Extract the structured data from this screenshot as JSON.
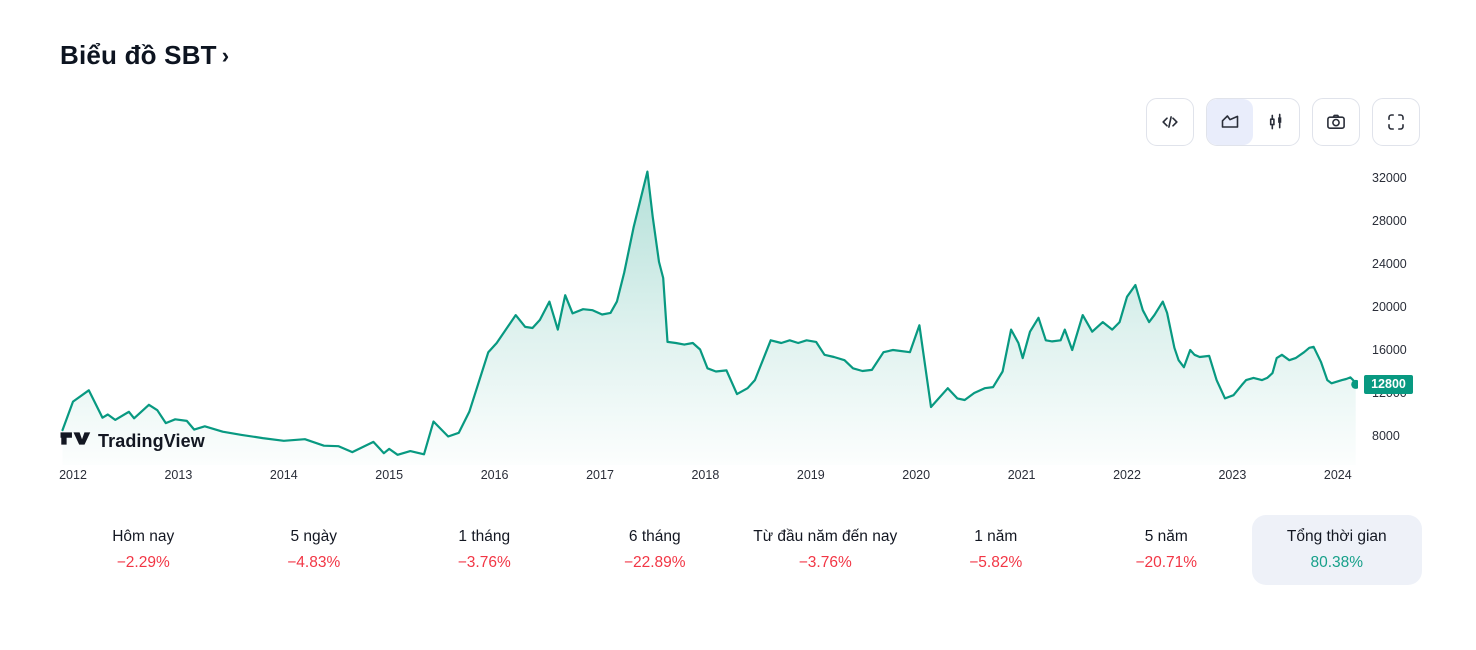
{
  "page": {
    "title": "Biểu đồ SBT",
    "chevron": "›"
  },
  "theme": {
    "accent": "#089981",
    "negative": "#f23645",
    "text-dark": "#131722",
    "pill-bg": "#eef1f8"
  },
  "toolbar": {
    "buttons": [
      {
        "name": "code",
        "icon": "code-icon"
      },
      {
        "name": "area-chart",
        "icon": "area-chart-icon",
        "active": true
      },
      {
        "name": "candlestick",
        "icon": "candlestick-icon",
        "active": false
      },
      {
        "name": "snapshot",
        "icon": "camera-icon"
      },
      {
        "name": "fullscreen",
        "icon": "fullscreen-icon"
      }
    ]
  },
  "watermark": {
    "text": "TradingView"
  },
  "price_scale": {
    "current_price_label": "12800"
  },
  "chart_data": {
    "type": "area",
    "symbol": "SBT",
    "title": "Biểu đồ SBT",
    "line_color": "#089981",
    "fill_top": "rgba(8,153,129,0.30)",
    "fill_mid": "rgba(8,153,129,0.13)",
    "fill_bottom": "rgba(8,153,129,0.01)",
    "x_ticks": [
      2012,
      2013,
      2014,
      2015,
      2016,
      2017,
      2018,
      2019,
      2020,
      2021,
      2022,
      2023,
      2024
    ],
    "y_ticks": [
      8000,
      12000,
      16000,
      20000,
      24000,
      28000,
      32000
    ],
    "x_range": [
      2011.9,
      2024.33
    ],
    "y_range": [
      5300,
      34100
    ],
    "grid": false,
    "last_price": 12800,
    "series": [
      {
        "name": "SBT",
        "points": [
          [
            2011.9,
            8550
          ],
          [
            2012.0,
            11200
          ],
          [
            2012.15,
            12250
          ],
          [
            2012.28,
            9700
          ],
          [
            2012.33,
            10000
          ],
          [
            2012.4,
            9500
          ],
          [
            2012.53,
            10250
          ],
          [
            2012.58,
            9650
          ],
          [
            2012.72,
            10900
          ],
          [
            2012.8,
            10400
          ],
          [
            2012.88,
            9200
          ],
          [
            2012.97,
            9550
          ],
          [
            2013.08,
            9400
          ],
          [
            2013.15,
            8600
          ],
          [
            2013.25,
            8900
          ],
          [
            2013.42,
            8400
          ],
          [
            2013.6,
            8100
          ],
          [
            2013.8,
            7800
          ],
          [
            2014.0,
            7550
          ],
          [
            2014.2,
            7700
          ],
          [
            2014.38,
            7100
          ],
          [
            2014.52,
            7050
          ],
          [
            2014.65,
            6500
          ],
          [
            2014.85,
            7450
          ],
          [
            2014.95,
            6400
          ],
          [
            2015.0,
            6800
          ],
          [
            2015.08,
            6250
          ],
          [
            2015.2,
            6600
          ],
          [
            2015.33,
            6300
          ],
          [
            2015.42,
            9350
          ],
          [
            2015.56,
            7950
          ],
          [
            2015.66,
            8300
          ],
          [
            2015.76,
            10250
          ],
          [
            2015.94,
            15800
          ],
          [
            2016.02,
            16650
          ],
          [
            2016.2,
            19250
          ],
          [
            2016.29,
            18150
          ],
          [
            2016.36,
            18050
          ],
          [
            2016.43,
            18800
          ],
          [
            2016.52,
            20500
          ],
          [
            2016.6,
            17900
          ],
          [
            2016.67,
            21100
          ],
          [
            2016.74,
            19400
          ],
          [
            2016.84,
            19800
          ],
          [
            2016.93,
            19700
          ],
          [
            2017.02,
            19300
          ],
          [
            2017.1,
            19450
          ],
          [
            2017.16,
            20500
          ],
          [
            2017.23,
            23200
          ],
          [
            2017.32,
            27450
          ],
          [
            2017.45,
            32600
          ],
          [
            2017.5,
            28400
          ],
          [
            2017.56,
            24200
          ],
          [
            2017.6,
            22700
          ],
          [
            2017.64,
            16750
          ],
          [
            2017.72,
            16650
          ],
          [
            2017.8,
            16500
          ],
          [
            2017.88,
            16650
          ],
          [
            2017.95,
            16050
          ],
          [
            2018.02,
            14300
          ],
          [
            2018.1,
            14000
          ],
          [
            2018.2,
            14100
          ],
          [
            2018.3,
            11900
          ],
          [
            2018.4,
            12450
          ],
          [
            2018.47,
            13200
          ],
          [
            2018.62,
            16900
          ],
          [
            2018.72,
            16650
          ],
          [
            2018.8,
            16900
          ],
          [
            2018.88,
            16650
          ],
          [
            2018.96,
            16900
          ],
          [
            2019.05,
            16750
          ],
          [
            2019.13,
            15550
          ],
          [
            2019.22,
            15350
          ],
          [
            2019.32,
            15050
          ],
          [
            2019.4,
            14300
          ],
          [
            2019.49,
            14050
          ],
          [
            2019.58,
            14150
          ],
          [
            2019.69,
            15800
          ],
          [
            2019.78,
            16000
          ],
          [
            2019.94,
            15800
          ],
          [
            2020.03,
            18300
          ],
          [
            2020.14,
            10700
          ],
          [
            2020.3,
            12450
          ],
          [
            2020.39,
            11500
          ],
          [
            2020.46,
            11350
          ],
          [
            2020.55,
            12000
          ],
          [
            2020.65,
            12450
          ],
          [
            2020.73,
            12550
          ],
          [
            2020.82,
            14000
          ],
          [
            2020.9,
            17900
          ],
          [
            2020.97,
            16650
          ],
          [
            2021.01,
            15250
          ],
          [
            2021.08,
            17700
          ],
          [
            2021.16,
            19000
          ],
          [
            2021.23,
            16900
          ],
          [
            2021.29,
            16800
          ],
          [
            2021.37,
            16900
          ],
          [
            2021.41,
            17900
          ],
          [
            2021.48,
            16000
          ],
          [
            2021.58,
            19250
          ],
          [
            2021.67,
            17700
          ],
          [
            2021.77,
            18600
          ],
          [
            2021.86,
            17900
          ],
          [
            2021.93,
            18600
          ],
          [
            2022.0,
            20950
          ],
          [
            2022.08,
            22050
          ],
          [
            2022.15,
            19700
          ],
          [
            2022.21,
            18600
          ],
          [
            2022.26,
            19250
          ],
          [
            2022.34,
            20500
          ],
          [
            2022.38,
            19450
          ],
          [
            2022.45,
            16200
          ],
          [
            2022.49,
            15050
          ],
          [
            2022.54,
            14400
          ],
          [
            2022.6,
            16000
          ],
          [
            2022.64,
            15550
          ],
          [
            2022.69,
            15350
          ],
          [
            2022.78,
            15450
          ],
          [
            2022.85,
            13200
          ],
          [
            2022.93,
            11500
          ],
          [
            2023.01,
            11800
          ],
          [
            2023.09,
            12750
          ],
          [
            2023.13,
            13200
          ],
          [
            2023.2,
            13400
          ],
          [
            2023.28,
            13200
          ],
          [
            2023.33,
            13400
          ],
          [
            2023.38,
            13850
          ],
          [
            2023.42,
            15250
          ],
          [
            2023.47,
            15550
          ],
          [
            2023.54,
            15050
          ],
          [
            2023.6,
            15250
          ],
          [
            2023.68,
            15800
          ],
          [
            2023.73,
            16200
          ],
          [
            2023.77,
            16300
          ],
          [
            2023.84,
            14900
          ],
          [
            2023.9,
            13200
          ],
          [
            2023.94,
            12900
          ],
          [
            2023.99,
            13050
          ],
          [
            2024.04,
            13200
          ],
          [
            2024.08,
            13300
          ],
          [
            2024.12,
            13450
          ],
          [
            2024.15,
            13150
          ],
          [
            2024.17,
            12800
          ]
        ]
      }
    ]
  },
  "stats": {
    "items": [
      {
        "label": "Hôm nay",
        "value": "−2.29%",
        "direction": "down",
        "selected": false
      },
      {
        "label": "5 ngày",
        "value": "−4.83%",
        "direction": "down",
        "selected": false
      },
      {
        "label": "1 tháng",
        "value": "−3.76%",
        "direction": "down",
        "selected": false
      },
      {
        "label": "6 tháng",
        "value": "−22.89%",
        "direction": "down",
        "selected": false
      },
      {
        "label": "Từ đầu năm đến nay",
        "value": "−3.76%",
        "direction": "down",
        "selected": false
      },
      {
        "label": "1 năm",
        "value": "−5.82%",
        "direction": "down",
        "selected": false
      },
      {
        "label": "5 năm",
        "value": "−20.71%",
        "direction": "down",
        "selected": false
      },
      {
        "label": "Tổng thời gian",
        "value": "80.38%",
        "direction": "up",
        "selected": true
      }
    ]
  }
}
